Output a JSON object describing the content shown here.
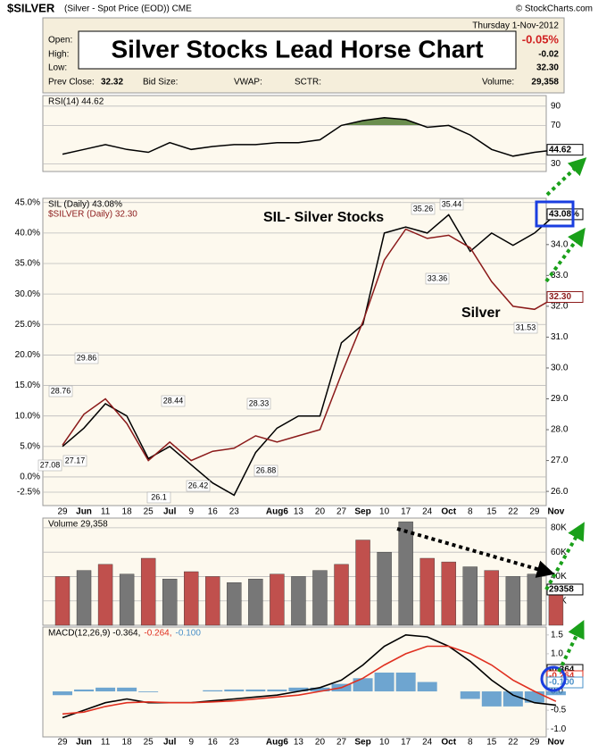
{
  "header": {
    "symbol": "$SILVER",
    "description": "(Silver - Spot Price (EOD)) CME",
    "copyright": "© StockCharts.com",
    "date": "Thursday  1-Nov-2012",
    "title": "Silver Stocks Lead Horse Chart",
    "rows": [
      [
        "Open:",
        "High:",
        "Low:"
      ],
      [
        "Prev Close:",
        "32.32",
        "Bid Size:",
        "VWAP:",
        "SCTR:",
        "Volume:",
        "29,358"
      ]
    ],
    "change_pct": "-0.05%",
    "change": "-0.02",
    "last": "32.30"
  },
  "chart_data": [
    {
      "type": "line",
      "categories": [
        "29",
        "Jun",
        "11",
        "18",
        "25",
        "Jul",
        "9",
        "16",
        "23",
        null,
        "Aug6",
        "13",
        "20",
        "27",
        "Sep",
        "10",
        "17",
        "24",
        "Oct",
        "8",
        "15",
        "22",
        "29",
        "Nov"
      ],
      "series": [
        {
          "name": "SIL (Daily) 43.08%",
          "color": "#000000",
          "last_label": "43.08%",
          "values": [
            5,
            8,
            12,
            10,
            3,
            5,
            2,
            -1,
            -3,
            4,
            8,
            10,
            10,
            22,
            25,
            40,
            41,
            40,
            43,
            37,
            40,
            38,
            40,
            43.08
          ]
        },
        {
          "name": "$SILVER (Daily) 32.30",
          "color": "#8b1a1a",
          "axis": "y2",
          "last_label": "32.30",
          "values": [
            27.5,
            28.5,
            29.0,
            28.2,
            27.0,
            27.6,
            27.0,
            27.3,
            27.4,
            27.8,
            27.6,
            27.8,
            28.0,
            29.8,
            31.5,
            33.5,
            34.5,
            34.2,
            34.3,
            33.9,
            32.8,
            32.0,
            31.9,
            32.3
          ]
        }
      ],
      "ylim": [
        -4.7,
        45.7
      ],
      "yticks": [
        {
          "value": -2.5,
          "label": "-2.5%"
        },
        {
          "value": 0,
          "label": "0.0%"
        },
        {
          "value": 5,
          "label": "5.0%"
        },
        {
          "value": 10,
          "label": "10.0%"
        },
        {
          "value": 15,
          "label": "15.0%"
        },
        {
          "value": 20,
          "label": "20.0%"
        },
        {
          "value": 25,
          "label": "25.0%"
        },
        {
          "value": 30,
          "label": "30.0%"
        },
        {
          "value": 35,
          "label": "35.0%"
        },
        {
          "value": 40,
          "label": "40.0%"
        },
        {
          "value": 45,
          "label": "45.0%"
        }
      ],
      "y2lim": [
        25.54,
        35.5
      ],
      "y2ticks": [
        {
          "value": 26,
          "label": "26.0"
        },
        {
          "value": 27,
          "label": "27.0"
        },
        {
          "value": 28,
          "label": "28.0"
        },
        {
          "value": 29,
          "label": "29.0"
        },
        {
          "value": 30,
          "label": "30.0"
        },
        {
          "value": 31,
          "label": "31.0"
        },
        {
          "value": 32,
          "label": "32.0"
        },
        {
          "value": 33,
          "label": "33.0"
        },
        {
          "value": 34,
          "label": "34.0"
        },
        {
          "value": 35,
          "label": "35.0"
        }
      ],
      "grid": true,
      "annotations": [
        "SIL- Silver Stocks",
        "Silver"
      ],
      "price_labels": [
        27.08,
        28.76,
        27.17,
        29.86,
        26.1,
        28.44,
        26.42,
        28.33,
        26.88,
        35.26,
        33.36,
        35.44,
        31.53
      ]
    },
    {
      "type": "line",
      "series": [
        {
          "name": "RSI(14) 44.62",
          "color": "#000000",
          "last_label": "44.62",
          "values": [
            40,
            45,
            50,
            45,
            42,
            52,
            45,
            48,
            50,
            50,
            52,
            52,
            55,
            70,
            75,
            78,
            76,
            68,
            70,
            60,
            45,
            38,
            42,
            44.62
          ]
        }
      ],
      "ylim": [
        22,
        101
      ],
      "yticks": [
        30,
        70,
        90
      ],
      "overbought": 70,
      "fill_color": "#6b8e4e"
    },
    {
      "type": "bar",
      "series": [
        {
          "name": "Volume 29,358",
          "last_label": "29358",
          "values": [
            40000,
            45000,
            50000,
            42000,
            55000,
            38000,
            44000,
            40000,
            35000,
            38000,
            42000,
            40000,
            45000,
            50000,
            70000,
            60000,
            85000,
            55000,
            52000,
            48000,
            45000,
            40000,
            42000,
            29358
          ],
          "colors": [
            "#c0504d",
            "#777777",
            "#c0504d",
            "#777777",
            "#c0504d",
            "#777777",
            "#c0504d",
            "#c0504d",
            "#777777",
            "#777777",
            "#c0504d",
            "#777777",
            "#777777",
            "#c0504d",
            "#c0504d",
            "#777777",
            "#777777",
            "#c0504d",
            "#c0504d",
            "#777777",
            "#c0504d",
            "#777777",
            "#777777",
            "#c0504d"
          ]
        }
      ],
      "ylim": [
        0,
        88000
      ],
      "yticks": [
        {
          "value": 20000,
          "label": "20K"
        },
        {
          "value": 40000,
          "label": "40K"
        },
        {
          "value": 60000,
          "label": "60K"
        },
        {
          "value": 80000,
          "label": "80K"
        }
      ]
    },
    {
      "type": "combo",
      "series": [
        {
          "name": "MACD(12,26,9) -0.364,",
          "color": "#000000",
          "style": "line",
          "last_label": "-0.364",
          "values": [
            -0.7,
            -0.5,
            -0.3,
            -0.2,
            -0.3,
            -0.3,
            -0.3,
            -0.25,
            -0.2,
            -0.15,
            -0.1,
            0,
            0.1,
            0.3,
            0.7,
            1.2,
            1.5,
            1.45,
            1.2,
            0.8,
            0.3,
            -0.1,
            -0.3,
            -0.364
          ]
        },
        {
          "name": "-0.264,",
          "color": "#e03020",
          "style": "line",
          "last_label": "-0.264",
          "values": [
            -0.6,
            -0.55,
            -0.4,
            -0.3,
            -0.28,
            -0.3,
            -0.3,
            -0.28,
            -0.25,
            -0.2,
            -0.15,
            -0.1,
            0,
            0.1,
            0.35,
            0.7,
            1.0,
            1.2,
            1.2,
            1.0,
            0.7,
            0.3,
            0,
            -0.264
          ]
        },
        {
          "name": "-0.100",
          "color": "#4a90c8",
          "style": "bar",
          "last_label": "-0.100",
          "values": [
            -0.1,
            0.05,
            0.1,
            0.1,
            -0.02,
            0,
            0,
            0.03,
            0.05,
            0.05,
            0.05,
            0.1,
            0.1,
            0.2,
            0.35,
            0.5,
            0.5,
            0.25,
            0,
            -0.2,
            -0.4,
            -0.4,
            -0.3,
            -0.1
          ]
        }
      ],
      "ylim": [
        -1.21,
        1.71
      ],
      "yticks": [
        1.5,
        {
          "value": 1,
          "label": "1.0"
        },
        0.5,
        {
          "value": 0,
          "label": "0.0"
        },
        -0.5,
        {
          "value": -1,
          "label": "-1.0"
        }
      ]
    }
  ]
}
